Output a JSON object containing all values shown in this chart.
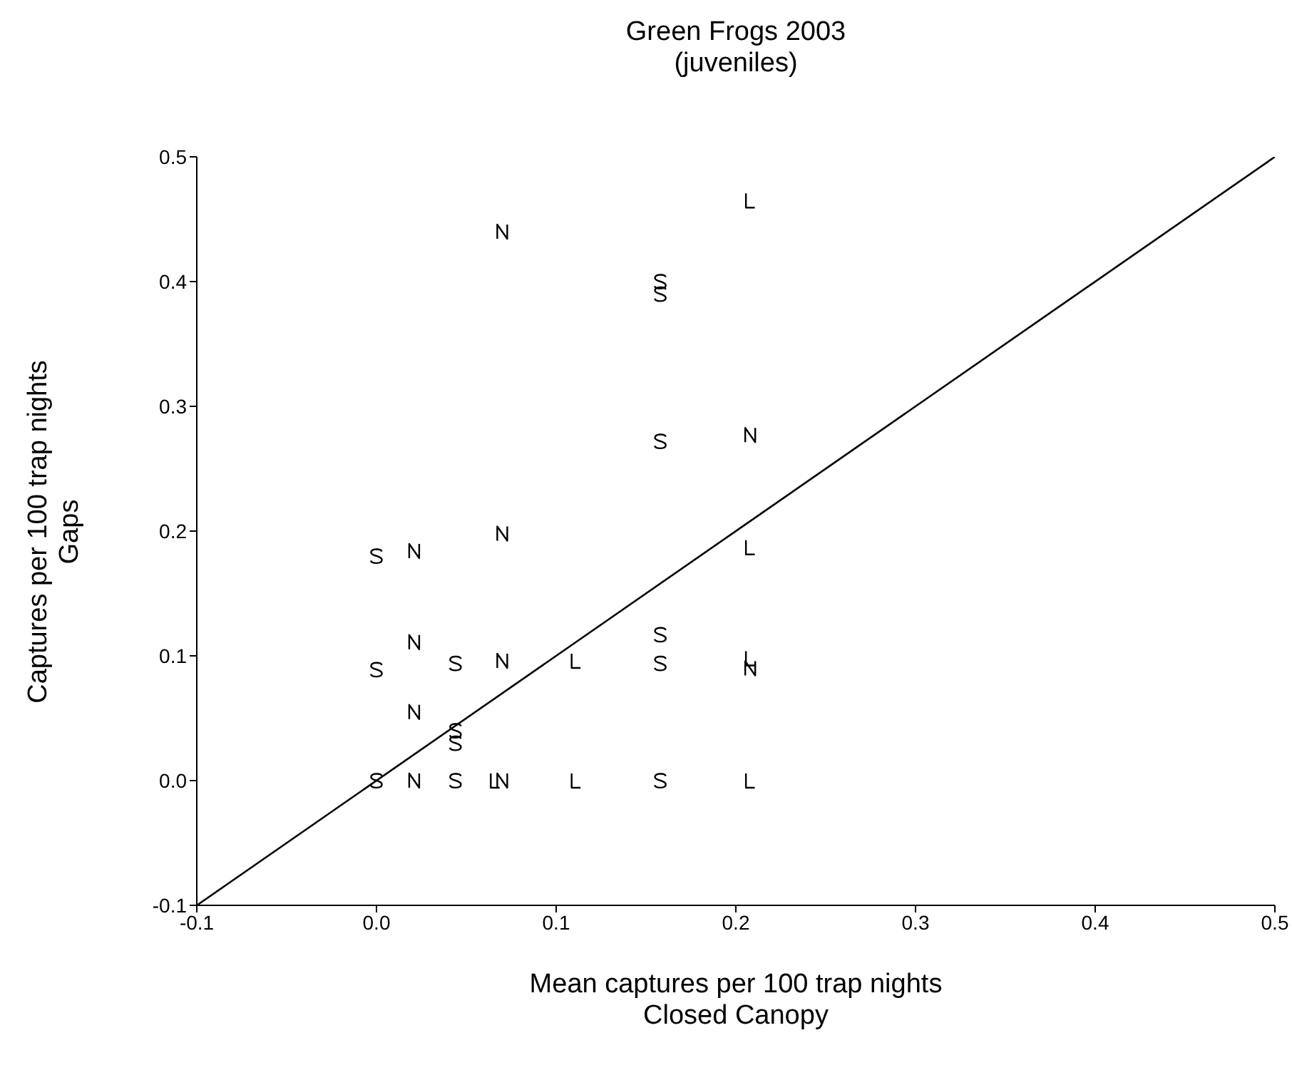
{
  "chart_data": {
    "type": "scatter",
    "title": "Green Frogs 2003\n(juveniles)",
    "xlabel": "Mean captures per 100 trap nights\nClosed Canopy",
    "ylabel": "Captures per 100 trap nights\nGaps",
    "xlim": [
      -0.1,
      0.5
    ],
    "ylim": [
      -0.1,
      0.5
    ],
    "xticks": [
      -0.1,
      {
        "value": 0,
        "label": "0.0"
      },
      0.1,
      0.2,
      0.3,
      0.4,
      0.5
    ],
    "yticks": [
      -0.1,
      {
        "value": 0,
        "label": "0.0"
      },
      0.1,
      0.2,
      0.3,
      0.4,
      0.5
    ],
    "grid": false,
    "legend": false,
    "series": [
      {
        "color": "#000000",
        "x": [
          0.0,
          0.0,
          0.0,
          0.044,
          0.044,
          0.044,
          0.044,
          0.158,
          0.158,
          0.158,
          0.158,
          0.158,
          0.158
        ],
        "values": [
          0,
          0.089,
          0.18,
          0,
          0.094,
          0.04,
          0.03,
          0,
          0.094,
          0.117,
          0.272,
          0.4,
          0.39
        ]
      },
      {
        "color": "#000000",
        "x": [
          0.021,
          0.021,
          0.021,
          0.021,
          0.07,
          0.07,
          0.07,
          0.07,
          0.208,
          0.208
        ],
        "values": [
          0,
          0.055,
          0.111,
          0.184,
          0,
          0.096,
          0.198,
          0.44,
          0.09,
          0.277
        ]
      },
      {
        "color": "#000000",
        "x": [
          0.066,
          0.111,
          0.111,
          0.208,
          0.208,
          0.208,
          0.208
        ],
        "values": [
          0,
          0,
          0.096,
          0,
          0.098,
          0.187,
          0.465
        ]
      },
      {
        "type": "line",
        "color": "#000000",
        "x": [
          -0.1,
          0.5
        ],
        "values": [
          -0.1,
          0.5
        ]
      }
    ]
  }
}
